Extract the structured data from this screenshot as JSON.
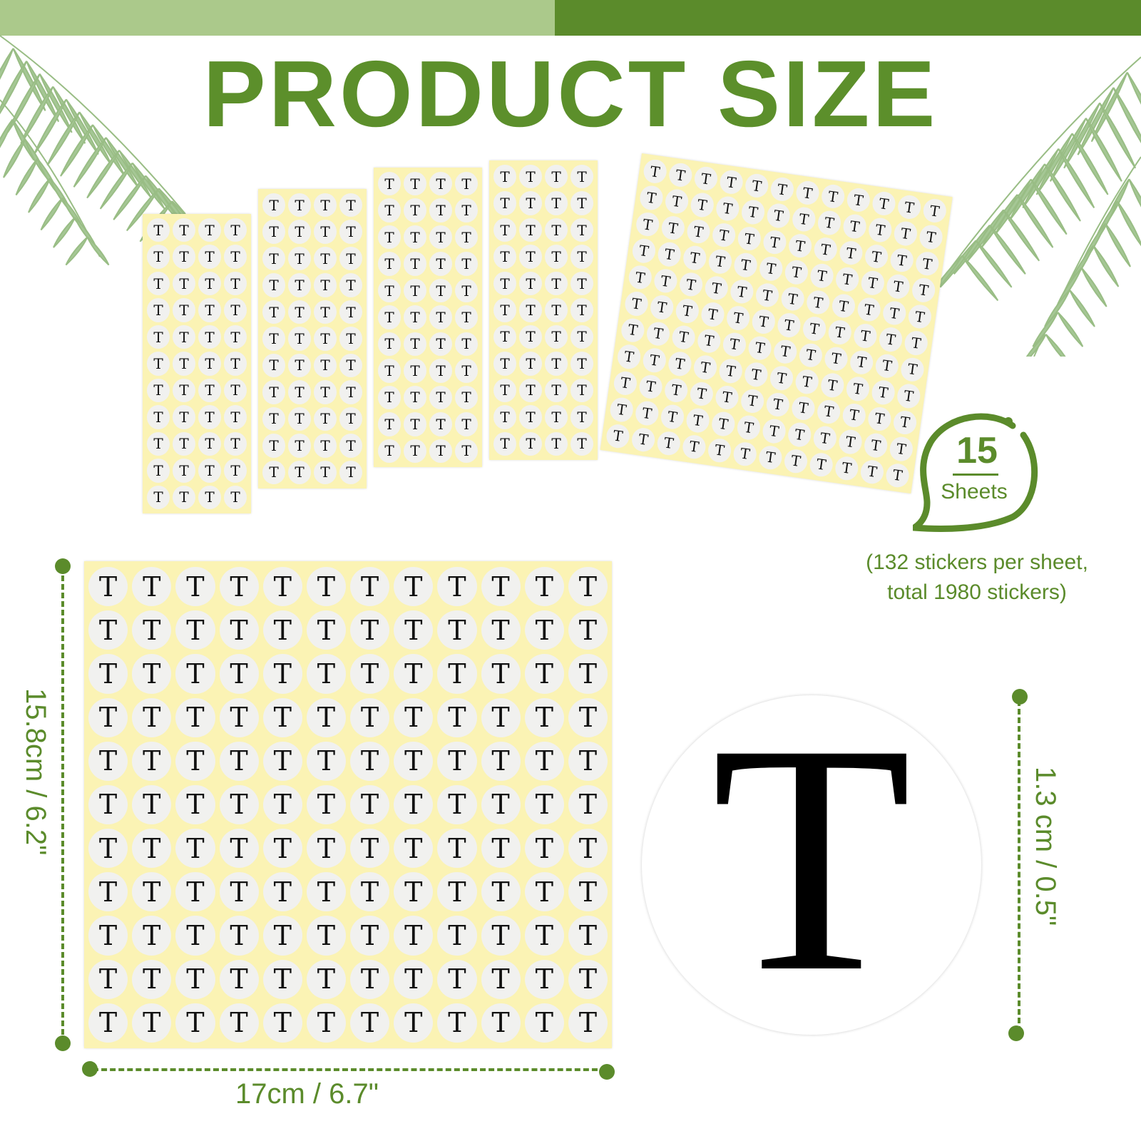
{
  "header": {
    "title": "PRODUCT SIZE"
  },
  "colors": {
    "brand_green": "#5b8b2b",
    "light_green": "#abc98b",
    "sheet_yellow": "#fbf3b4",
    "sticker_white": "#f1f1ef"
  },
  "sticker_letter": "T",
  "sheet_grid": {
    "columns": 12,
    "rows": 11
  },
  "fan_sheet_count": 5,
  "badge": {
    "count": "15",
    "unit": "Sheets"
  },
  "note": {
    "line1": "(132 stickers per sheet,",
    "line2": "total 1980 stickers)"
  },
  "dimensions": {
    "sheet_height": "15.8cm / 6.2\"",
    "sheet_width": "17cm / 6.7\"",
    "sticker_diameter": "1.3 cm / 0.5\""
  },
  "icons": [
    "palm-leaf-icon",
    "speech-bubble-icon"
  ]
}
